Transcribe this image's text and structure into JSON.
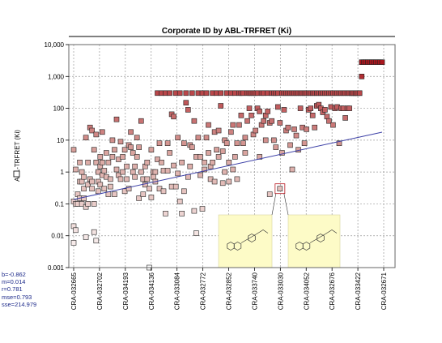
{
  "chart_data": {
    "type": "scatter",
    "title": "Corporate ID by ABL-TRFRET (Ki)",
    "ylabel": "ABL-TRFRET (Ki)",
    "xlabel": "",
    "yscale": "log",
    "ylim": [
      0.001,
      10000
    ],
    "yticks": [
      "0.001",
      "0.01",
      "0.1",
      "1",
      "10",
      "100",
      "1,000",
      "10,000"
    ],
    "x_tick_labels": [
      "CRA-032665",
      "CRA-032702",
      "CRA-034193",
      "CRA-034136",
      "CRA-033084",
      "CRA-032772",
      "CRA-032852",
      "CRA-033740",
      "CRA-033030",
      "CRA-034052",
      "CRA-032676",
      "CRA-033422",
      "CRA-032671"
    ],
    "grid": true,
    "regression": {
      "b": "-0.862",
      "m": "0.014",
      "r": "0.781",
      "mse": "0.793",
      "sse": "214.979"
    },
    "colors": {
      "low": "#ffffff",
      "mid": "#d9a5a0",
      "high": "#b5111a",
      "regression_line": "#3b3fa6",
      "structure_panel": "#fdfbc7"
    },
    "points": [
      [
        0,
        0.02
      ],
      [
        0,
        0.006
      ],
      [
        0,
        0.12
      ],
      [
        1,
        0.015
      ],
      [
        1,
        0.1
      ],
      [
        0,
        5
      ],
      [
        1,
        1.2
      ],
      [
        2,
        0.1
      ],
      [
        2,
        0.2
      ],
      [
        3,
        0.15
      ],
      [
        3,
        0.5
      ],
      [
        3,
        2
      ],
      [
        4,
        0.5
      ],
      [
        4,
        1
      ],
      [
        4,
        0.1
      ],
      [
        5,
        0.3
      ],
      [
        5,
        0.7
      ],
      [
        5,
        0.15
      ],
      [
        6,
        0.009
      ],
      [
        6,
        0.08
      ],
      [
        6,
        12
      ],
      [
        7,
        0.4
      ],
      [
        7,
        0.1
      ],
      [
        7,
        2
      ],
      [
        8,
        0.6
      ],
      [
        8,
        25
      ],
      [
        9,
        0.3
      ],
      [
        9,
        0.5
      ],
      [
        9,
        20
      ],
      [
        10,
        0.013
      ],
      [
        10,
        0.1
      ],
      [
        10,
        5
      ],
      [
        11,
        0.007
      ],
      [
        11,
        2
      ],
      [
        11,
        15
      ],
      [
        12,
        0.5
      ],
      [
        12,
        1
      ],
      [
        12,
        0.25
      ],
      [
        13,
        3
      ],
      [
        13,
        0.4
      ],
      [
        13,
        1.5
      ],
      [
        14,
        2
      ],
      [
        14,
        0.8
      ],
      [
        14,
        18
      ],
      [
        15,
        0.3
      ],
      [
        15,
        1.1
      ],
      [
        16,
        4
      ],
      [
        16,
        0.7
      ],
      [
        17,
        0.2
      ],
      [
        17,
        2
      ],
      [
        18,
        0.35
      ],
      [
        18,
        0.6
      ],
      [
        19,
        3
      ],
      [
        19,
        10
      ],
      [
        20,
        5
      ],
      [
        20,
        0.2
      ],
      [
        21,
        45
      ],
      [
        21,
        1.2
      ],
      [
        22,
        0.8
      ],
      [
        22,
        2.5
      ],
      [
        23,
        0.6
      ],
      [
        23,
        9
      ],
      [
        24,
        3
      ],
      [
        24,
        1
      ],
      [
        25,
        0.25
      ],
      [
        25,
        5
      ],
      [
        26,
        1.5
      ],
      [
        26,
        0.6
      ],
      [
        27,
        7
      ],
      [
        27,
        0.3
      ],
      [
        28,
        6
      ],
      [
        28,
        18
      ],
      [
        29,
        1
      ],
      [
        29,
        4
      ],
      [
        30,
        1.5
      ],
      [
        30,
        0.7
      ],
      [
        31,
        12
      ],
      [
        31,
        3
      ],
      [
        32,
        0.15
      ],
      [
        32,
        6
      ],
      [
        33,
        40
      ],
      [
        33,
        1
      ],
      [
        34,
        0.2
      ],
      [
        34,
        0.6
      ],
      [
        35,
        1.5
      ],
      [
        35,
        0.4
      ],
      [
        36,
        0.6
      ],
      [
        36,
        2
      ],
      [
        37,
        0.001
      ],
      [
        37,
        0.3
      ],
      [
        38,
        0.16
      ],
      [
        38,
        5
      ],
      [
        39,
        1
      ],
      [
        39,
        0.7
      ],
      [
        40,
        1
      ],
      [
        40,
        0.5
      ],
      [
        41,
        300
      ],
      [
        41,
        2.5
      ],
      [
        42,
        0.3
      ],
      [
        42,
        8
      ],
      [
        43,
        300
      ],
      [
        43,
        2
      ],
      [
        44,
        1.1
      ],
      [
        44,
        0.25
      ],
      [
        45,
        300
      ],
      [
        45,
        0.05
      ],
      [
        46,
        8
      ],
      [
        46,
        1.1
      ],
      [
        47,
        300
      ],
      [
        47,
        4
      ],
      [
        48,
        65
      ],
      [
        48,
        0.35
      ],
      [
        49,
        55
      ],
      [
        49,
        1.6
      ],
      [
        50,
        300
      ],
      [
        50,
        0.35
      ],
      [
        51,
        12
      ],
      [
        51,
        0.9
      ],
      [
        52,
        300
      ],
      [
        52,
        0.12
      ],
      [
        53,
        2
      ],
      [
        53,
        0.05
      ],
      [
        54,
        0.25
      ],
      [
        54,
        8
      ],
      [
        55,
        300
      ],
      [
        55,
        150
      ],
      [
        56,
        90
      ],
      [
        56,
        0.7
      ],
      [
        57,
        1.5
      ],
      [
        57,
        7
      ],
      [
        58,
        6
      ],
      [
        58,
        300
      ],
      [
        59,
        40
      ],
      [
        59,
        0.06
      ],
      [
        60,
        0.012
      ],
      [
        60,
        3
      ],
      [
        61,
        300
      ],
      [
        61,
        12
      ],
      [
        62,
        0.8
      ],
      [
        62,
        3
      ],
      [
        63,
        300
      ],
      [
        63,
        0.07
      ],
      [
        64,
        1.2
      ],
      [
        64,
        2
      ],
      [
        65,
        12
      ],
      [
        65,
        300
      ],
      [
        66,
        4
      ],
      [
        66,
        30
      ],
      [
        67,
        0.6
      ],
      [
        67,
        1.5
      ],
      [
        68,
        300
      ],
      [
        68,
        2
      ],
      [
        69,
        0.5
      ],
      [
        69,
        18
      ],
      [
        70,
        300
      ],
      [
        70,
        5
      ],
      [
        71,
        20
      ],
      [
        71,
        3
      ],
      [
        72,
        300
      ],
      [
        72,
        120
      ],
      [
        73,
        4.5
      ],
      [
        73,
        0.45
      ],
      [
        74,
        1
      ],
      [
        74,
        10
      ],
      [
        75,
        300
      ],
      [
        75,
        8
      ],
      [
        76,
        0.5
      ],
      [
        76,
        2
      ],
      [
        77,
        300
      ],
      [
        77,
        18
      ],
      [
        78,
        1.2
      ],
      [
        78,
        30
      ],
      [
        79,
        300
      ],
      [
        79,
        3
      ],
      [
        80,
        0.6
      ],
      [
        80,
        8
      ],
      [
        81,
        300
      ],
      [
        81,
        30
      ],
      [
        82,
        300
      ],
      [
        82,
        60
      ],
      [
        83,
        300
      ],
      [
        83,
        8
      ],
      [
        84,
        12
      ],
      [
        84,
        4
      ],
      [
        85,
        300
      ],
      [
        85,
        40
      ],
      [
        86,
        300
      ],
      [
        86,
        100
      ],
      [
        87,
        300
      ],
      [
        87,
        60
      ],
      [
        88,
        300
      ],
      [
        88,
        15
      ],
      [
        89,
        300
      ],
      [
        89,
        20
      ],
      [
        90,
        300
      ],
      [
        90,
        100
      ],
      [
        91,
        80
      ],
      [
        91,
        3
      ],
      [
        92,
        300
      ],
      [
        92,
        30
      ],
      [
        93,
        300
      ],
      [
        93,
        40
      ],
      [
        94,
        60
      ],
      [
        94,
        10
      ],
      [
        95,
        80
      ],
      [
        95,
        300
      ],
      [
        96,
        0.2
      ],
      [
        96,
        35
      ],
      [
        97,
        300
      ],
      [
        97,
        40
      ],
      [
        98,
        300
      ],
      [
        98,
        10
      ],
      [
        99,
        300
      ],
      [
        99,
        6
      ],
      [
        100,
        300
      ],
      [
        100,
        110
      ],
      [
        101,
        35
      ],
      [
        101,
        0.3
      ],
      [
        102,
        300
      ],
      [
        102,
        4
      ],
      [
        103,
        300
      ],
      [
        103,
        90
      ],
      [
        104,
        300
      ],
      [
        104,
        20
      ],
      [
        105,
        300
      ],
      [
        105,
        25
      ],
      [
        106,
        300
      ],
      [
        106,
        7
      ],
      [
        107,
        300
      ],
      [
        107,
        1.2
      ],
      [
        108,
        300
      ],
      [
        108,
        22
      ],
      [
        109,
        300
      ],
      [
        109,
        14
      ],
      [
        110,
        300
      ],
      [
        110,
        5
      ],
      [
        111,
        300
      ],
      [
        111,
        100
      ],
      [
        112,
        300
      ],
      [
        112,
        25
      ],
      [
        113,
        300
      ],
      [
        113,
        8
      ],
      [
        114,
        300
      ],
      [
        114,
        22
      ],
      [
        115,
        300
      ],
      [
        115,
        90
      ],
      [
        116,
        300
      ],
      [
        116,
        100
      ],
      [
        117,
        300
      ],
      [
        117,
        60
      ],
      [
        118,
        300
      ],
      [
        118,
        25
      ],
      [
        119,
        300
      ],
      [
        119,
        120
      ],
      [
        120,
        300
      ],
      [
        120,
        130
      ],
      [
        121,
        300
      ],
      [
        121,
        100
      ],
      [
        122,
        300
      ],
      [
        122,
        75
      ],
      [
        123,
        300
      ],
      [
        123,
        90
      ],
      [
        124,
        300
      ],
      [
        124,
        55
      ],
      [
        125,
        300
      ],
      [
        125,
        40
      ],
      [
        126,
        300
      ],
      [
        126,
        110
      ],
      [
        127,
        300
      ],
      [
        127,
        30
      ],
      [
        128,
        300
      ],
      [
        128,
        100
      ],
      [
        129,
        300
      ],
      [
        129,
        110
      ],
      [
        130,
        300
      ],
      [
        130,
        8
      ],
      [
        131,
        300
      ],
      [
        131,
        100
      ],
      [
        132,
        300
      ],
      [
        132,
        100
      ],
      [
        133,
        300
      ],
      [
        133,
        50
      ],
      [
        134,
        300
      ],
      [
        134,
        100
      ],
      [
        135,
        300
      ],
      [
        135,
        100
      ],
      [
        136,
        300
      ],
      [
        136,
        300
      ],
      [
        137,
        300
      ],
      [
        137,
        300
      ],
      [
        138,
        300
      ],
      [
        138,
        300
      ],
      [
        139,
        300
      ],
      [
        139,
        300
      ],
      [
        140,
        300
      ],
      [
        140,
        300
      ],
      [
        141,
        1000
      ],
      [
        141,
        2800
      ],
      [
        142,
        2800
      ],
      [
        143,
        2800
      ],
      [
        144,
        2800
      ],
      [
        145,
        2800
      ],
      [
        146,
        2800
      ],
      [
        147,
        2800
      ],
      [
        148,
        2800
      ],
      [
        149,
        2800
      ],
      [
        150,
        2800
      ],
      [
        151,
        2800
      ]
    ]
  },
  "structure_panels": [
    {
      "name": "left"
    },
    {
      "name": "right"
    }
  ]
}
